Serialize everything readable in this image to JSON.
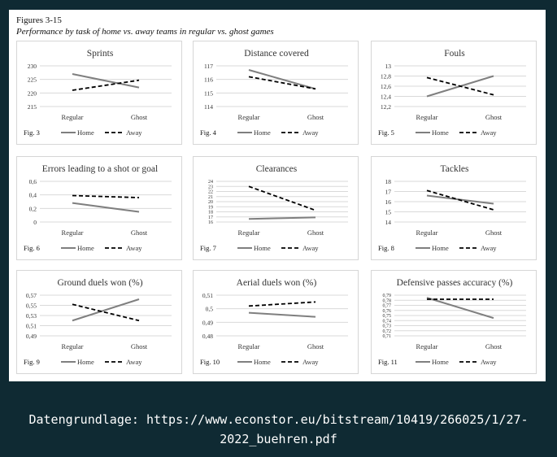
{
  "figure": {
    "number": "Figures 3-15",
    "subtitle": "Performance by task of home vs. away teams in regular vs. ghost games"
  },
  "legend": {
    "home": "Home",
    "away": "Away"
  },
  "colors": {
    "home": "#7f7f7f",
    "away": "#000000",
    "grid": "#d9d9d9",
    "text": "#333333"
  },
  "chart_data": [
    {
      "type": "line",
      "fig": "Fig. 3",
      "title": "Sprints",
      "categories": [
        "Regular",
        "Ghost"
      ],
      "ylim": [
        215,
        230
      ],
      "yticks": [
        "215",
        "220",
        "225",
        "230"
      ],
      "yvals": [
        215,
        220,
        225,
        230
      ],
      "series": [
        {
          "name": "Home",
          "values": [
            227,
            222
          ]
        },
        {
          "name": "Away",
          "values": [
            221,
            224.7
          ]
        }
      ]
    },
    {
      "type": "line",
      "fig": "Fig. 4",
      "title": "Distance covered",
      "categories": [
        "Regular",
        "Ghost"
      ],
      "ylim": [
        114,
        117
      ],
      "yticks": [
        "114",
        "115",
        "116",
        "117"
      ],
      "yvals": [
        114,
        115,
        116,
        117
      ],
      "series": [
        {
          "name": "Home",
          "values": [
            116.7,
            115.3
          ]
        },
        {
          "name": "Away",
          "values": [
            116.2,
            115.3
          ]
        }
      ]
    },
    {
      "type": "line",
      "fig": "Fig. 5",
      "title": "Fouls",
      "categories": [
        "Regular",
        "Ghost"
      ],
      "ylim": [
        12.2,
        13
      ],
      "yticks": [
        "12,2",
        "12,4",
        "12,6",
        "12,8",
        "13"
      ],
      "yvals": [
        12.2,
        12.4,
        12.6,
        12.8,
        13
      ],
      "series": [
        {
          "name": "Home",
          "values": [
            12.4,
            12.8
          ]
        },
        {
          "name": "Away",
          "values": [
            12.77,
            12.43
          ]
        }
      ]
    },
    {
      "type": "line",
      "fig": "Fig. 6",
      "title": "Errors leading to a shot or goal",
      "categories": [
        "Regular",
        "Ghost"
      ],
      "ylim": [
        0,
        0.6
      ],
      "yticks": [
        "0",
        "0,2",
        "0,4",
        "0,6"
      ],
      "yvals": [
        0,
        0.2,
        0.4,
        0.6
      ],
      "series": [
        {
          "name": "Home",
          "values": [
            0.28,
            0.15
          ]
        },
        {
          "name": "Away",
          "values": [
            0.39,
            0.36
          ]
        }
      ]
    },
    {
      "type": "line",
      "fig": "Fig. 7",
      "title": "Clearances",
      "categories": [
        "Regular",
        "Ghost"
      ],
      "ylim": [
        16,
        24
      ],
      "yticks": [
        "16",
        "17",
        "18",
        "19",
        "20",
        "21",
        "22",
        "23",
        "24"
      ],
      "yvals": [
        16,
        17,
        18,
        19,
        20,
        21,
        22,
        23,
        24
      ],
      "series": [
        {
          "name": "Home",
          "values": [
            16.6,
            16.9
          ]
        },
        {
          "name": "Away",
          "values": [
            23,
            18.3
          ]
        }
      ]
    },
    {
      "type": "line",
      "fig": "Fig. 8",
      "title": "Tackles",
      "categories": [
        "Regular",
        "Ghost"
      ],
      "ylim": [
        14,
        18
      ],
      "yticks": [
        "14",
        "15",
        "16",
        "17",
        "18"
      ],
      "yvals": [
        14,
        15,
        16,
        17,
        18
      ],
      "series": [
        {
          "name": "Home",
          "values": [
            16.6,
            15.8
          ]
        },
        {
          "name": "Away",
          "values": [
            17.1,
            15.2
          ]
        }
      ]
    },
    {
      "type": "line",
      "fig": "Fig. 9",
      "title": "Ground duels won (%)",
      "categories": [
        "Regular",
        "Ghost"
      ],
      "ylim": [
        0.49,
        0.57
      ],
      "yticks": [
        "0,49",
        "0,51",
        "0,53",
        "0,55",
        "0,57"
      ],
      "yvals": [
        0.49,
        0.51,
        0.53,
        0.55,
        0.57
      ],
      "series": [
        {
          "name": "Home",
          "values": [
            0.52,
            0.562
          ]
        },
        {
          "name": "Away",
          "values": [
            0.552,
            0.52
          ]
        }
      ]
    },
    {
      "type": "line",
      "fig": "Fig. 10",
      "title": "Aerial duels won (%)",
      "categories": [
        "Regular",
        "Ghost"
      ],
      "ylim": [
        0.48,
        0.51
      ],
      "yticks": [
        "0,48",
        "0,49",
        "0,5",
        "0,51"
      ],
      "yvals": [
        0.48,
        0.49,
        0.5,
        0.51
      ],
      "series": [
        {
          "name": "Home",
          "values": [
            0.497,
            0.494
          ]
        },
        {
          "name": "Away",
          "values": [
            0.502,
            0.505
          ]
        }
      ]
    },
    {
      "type": "line",
      "fig": "Fig. 11",
      "title": "Defensive passes accuracy (%)",
      "categories": [
        "Regular",
        "Ghost"
      ],
      "ylim": [
        0.71,
        0.79
      ],
      "yticks": [
        "0,71",
        "0,72",
        "0,73",
        "0,74",
        "0,75",
        "0,76",
        "0,77",
        "0,78",
        "0,79"
      ],
      "yvals": [
        0.71,
        0.72,
        0.73,
        0.74,
        0.75,
        0.76,
        0.77,
        0.78,
        0.79
      ],
      "series": [
        {
          "name": "Home",
          "values": [
            0.785,
            0.745
          ]
        },
        {
          "name": "Away",
          "values": [
            0.782,
            0.782
          ]
        }
      ]
    }
  ],
  "source": {
    "line1": "Datengrundlage: https://www.econstor.eu/bitstream/10419/266025/1/27-",
    "line2": "2022_buehren.pdf"
  }
}
